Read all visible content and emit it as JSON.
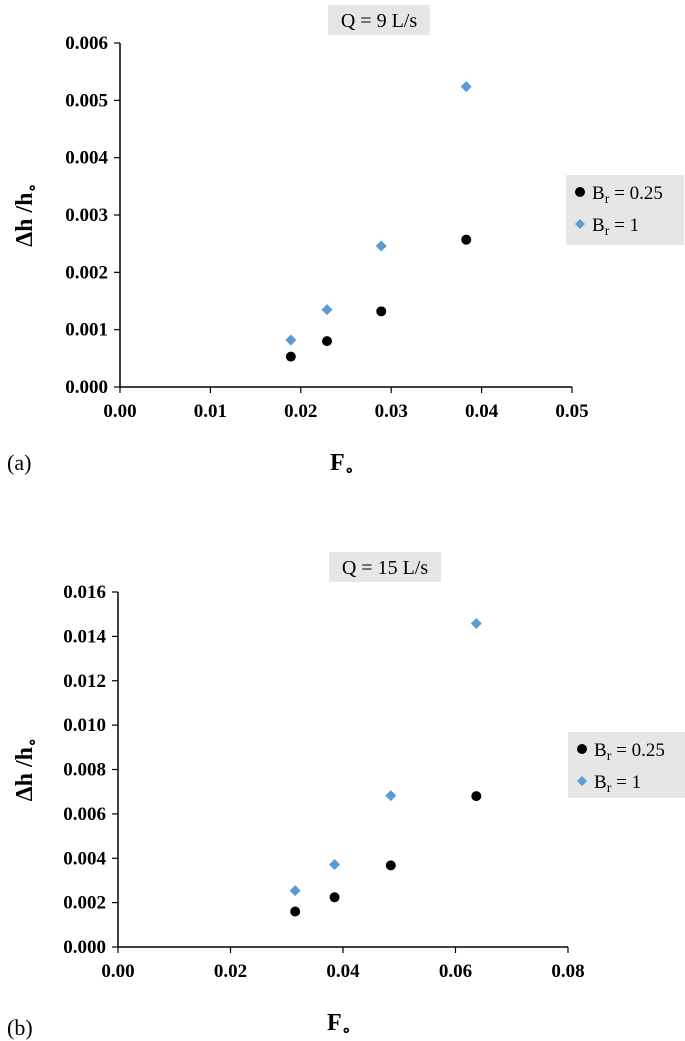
{
  "chart_data": [
    {
      "type": "scatter",
      "title": "Q = 9 L/s",
      "panel_label": "(a)",
      "xlabel": "F",
      "xlabel_sub": "∘",
      "ylabel": "Δh /h",
      "ylabel_sub": "∘",
      "xlim": [
        0,
        0.05
      ],
      "ylim": [
        0,
        0.006
      ],
      "x_ticks": [
        "0.00",
        "0.01",
        "0.02",
        "0.03",
        "0.04",
        "0.05"
      ],
      "y_ticks": [
        "0.000",
        "0.001",
        "0.002",
        "0.003",
        "0.004",
        "0.005",
        "0.006"
      ],
      "grid": false,
      "legend_position": "right",
      "series": [
        {
          "label_main": "B",
          "label_sub": "r",
          "label_rest": " = 0.25",
          "marker": "circle",
          "color": "#000000",
          "x": [
            0.0189,
            0.0229,
            0.0289,
            0.0383
          ],
          "y": [
            0.00053,
            0.0008,
            0.00132,
            0.00257
          ]
        },
        {
          "label_main": "B",
          "label_sub": "r",
          "label_rest": " = 1",
          "marker": "diamond",
          "color": "#5b9bd5",
          "x": [
            0.0189,
            0.0229,
            0.0289,
            0.0383
          ],
          "y": [
            0.00082,
            0.00135,
            0.00246,
            0.00524
          ]
        }
      ]
    },
    {
      "type": "scatter",
      "title": "Q = 15 L/s",
      "panel_label": "(b)",
      "xlabel": "F",
      "xlabel_sub": "∘",
      "ylabel": "Δh /h",
      "ylabel_sub": "∘",
      "xlim": [
        0,
        0.08
      ],
      "ylim": [
        0,
        0.016
      ],
      "x_ticks": [
        "0.00",
        "0.02",
        "0.04",
        "0.06",
        "0.08"
      ],
      "y_ticks": [
        "0.000",
        "0.002",
        "0.004",
        "0.006",
        "0.008",
        "0.010",
        "0.012",
        "0.014",
        "0.016"
      ],
      "grid": false,
      "legend_position": "right",
      "series": [
        {
          "label_main": "B",
          "label_sub": "r",
          "label_rest": " = 0.25",
          "marker": "circle",
          "color": "#000000",
          "x": [
            0.0315,
            0.0385,
            0.0485,
            0.0637
          ],
          "y": [
            0.0016,
            0.00224,
            0.00368,
            0.0068
          ]
        },
        {
          "label_main": "B",
          "label_sub": "r",
          "label_rest": " = 1",
          "marker": "diamond",
          "color": "#5b9bd5",
          "x": [
            0.0315,
            0.0385,
            0.0485,
            0.0637
          ],
          "y": [
            0.00254,
            0.00372,
            0.00682,
            0.01458
          ]
        }
      ]
    }
  ],
  "colors": {
    "title_box": "#e6e6e6",
    "legend_box": "#e6e6e6",
    "axis": "#000000"
  }
}
